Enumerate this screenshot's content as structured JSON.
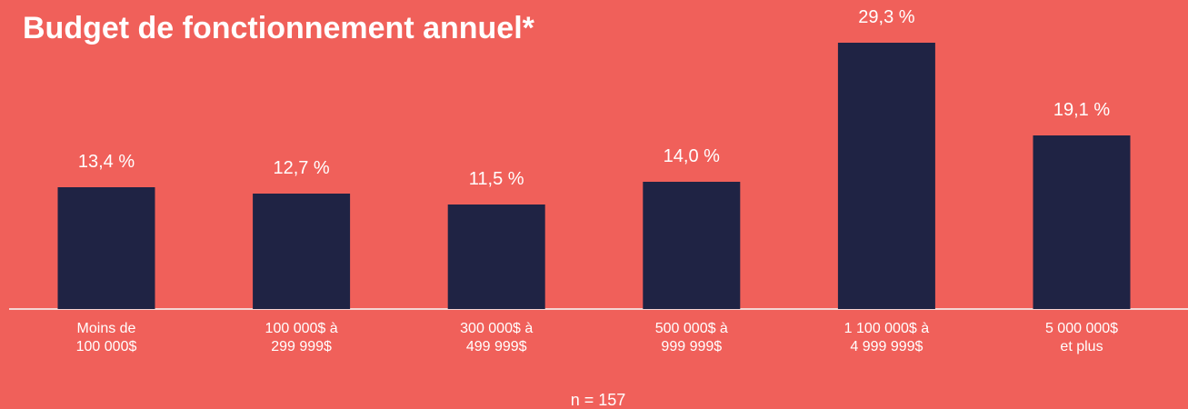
{
  "chart_data": {
    "type": "bar",
    "title": "Budget de fonctionnement annuel*",
    "categories": [
      "Moins de\n100 000$",
      "100 000$ à\n299 999$",
      "300 000$ à\n499 999$",
      "500 000$ à\n999 999$",
      "1 100 000$ à\n4 999 999$",
      "5 000 000$\net plus"
    ],
    "values": [
      13.4,
      12.7,
      11.5,
      14.0,
      29.3,
      19.1
    ],
    "value_labels": [
      "13,4 %",
      "12,7 %",
      "11,5 %",
      "14,0 %",
      "29,3 %",
      "19,1 %"
    ],
    "color": "#1f2344",
    "note": "n = 157"
  }
}
